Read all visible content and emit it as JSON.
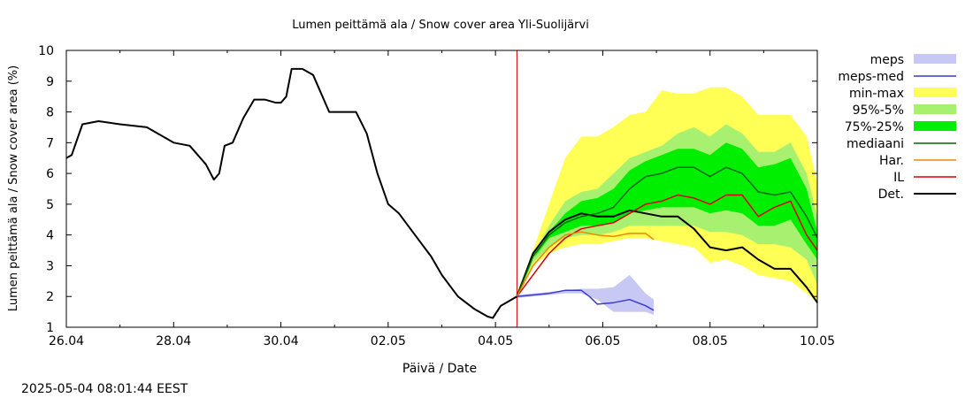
{
  "chart_data": {
    "type": "line",
    "title": "Lumen peittämä ala / Snow cover area Yli-Suolijärvi",
    "xlabel": "Päivä / Date",
    "ylabel": "Lumen peittämä ala / Snow cover area (%)",
    "timestamp": "2025-05-04 08:01:44 EEST",
    "xlim": [
      0,
      14
    ],
    "ylim": [
      1,
      10
    ],
    "x_ticks": [
      {
        "x": 0,
        "label": "26.04"
      },
      {
        "x": 2,
        "label": "28.04"
      },
      {
        "x": 4,
        "label": "30.04"
      },
      {
        "x": 6,
        "label": "02.05"
      },
      {
        "x": 8,
        "label": "04.05"
      },
      {
        "x": 10,
        "label": "06.05"
      },
      {
        "x": 12,
        "label": "08.05"
      },
      {
        "x": 14,
        "label": "10.05"
      }
    ],
    "y_ticks": [
      1,
      2,
      3,
      4,
      5,
      6,
      7,
      8,
      9,
      10
    ],
    "grid": false,
    "legend_position": "right",
    "now_marker": {
      "x": 8.4,
      "color": "#cc0000"
    },
    "legend": [
      {
        "label": "meps",
        "kind": "band",
        "color": "#c8c8f5"
      },
      {
        "label": "meps-med",
        "kind": "line",
        "color": "#3a3acc"
      },
      {
        "label": "min-max",
        "kind": "band",
        "color": "#ffff55"
      },
      {
        "label": "95%-5%",
        "kind": "band",
        "color": "#a8f070"
      },
      {
        "label": "75%-25%",
        "kind": "band",
        "color": "#00ee00"
      },
      {
        "label": "mediaani",
        "kind": "line",
        "color": "#006600"
      },
      {
        "label": "Har.",
        "kind": "line",
        "color": "#ee8800"
      },
      {
        "label": "IL",
        "kind": "line",
        "color": "#dd0000"
      },
      {
        "label": "Det.",
        "kind": "line",
        "color": "#000000"
      }
    ],
    "bands": [
      {
        "name": "min-max",
        "color": "#ffff55",
        "x": [
          8.4,
          8.7,
          9.0,
          9.3,
          9.6,
          9.9,
          10.2,
          10.5,
          10.8,
          11.1,
          11.4,
          11.7,
          12.0,
          12.3,
          12.6,
          12.9,
          13.2,
          13.5,
          13.8,
          14.0
        ],
        "upper": [
          2.1,
          3.5,
          5.0,
          6.5,
          7.2,
          7.2,
          7.5,
          7.9,
          8.0,
          8.7,
          8.6,
          8.6,
          8.8,
          8.8,
          8.5,
          7.9,
          7.9,
          7.9,
          7.2,
          5.7
        ],
        "lower": [
          2.0,
          3.0,
          3.4,
          3.6,
          3.7,
          3.7,
          3.8,
          3.9,
          3.9,
          3.8,
          3.7,
          3.6,
          3.1,
          3.2,
          3.0,
          2.7,
          2.6,
          2.5,
          2.1,
          1.8
        ]
      },
      {
        "name": "95%-5%",
        "color": "#a8f070",
        "x": [
          8.4,
          8.7,
          9.0,
          9.3,
          9.6,
          9.9,
          10.2,
          10.5,
          10.8,
          11.1,
          11.4,
          11.7,
          12.0,
          12.3,
          12.6,
          12.9,
          13.2,
          13.5,
          13.8,
          14.0
        ],
        "upper": [
          2.1,
          3.3,
          4.3,
          5.1,
          5.4,
          5.5,
          6.0,
          6.5,
          6.7,
          6.9,
          7.3,
          7.5,
          7.2,
          7.6,
          7.3,
          6.7,
          6.7,
          7.0,
          6.0,
          4.6
        ],
        "lower": [
          2.0,
          3.1,
          3.6,
          3.9,
          4.0,
          4.0,
          4.1,
          4.3,
          4.3,
          4.3,
          4.3,
          4.3,
          4.1,
          4.1,
          4.0,
          3.7,
          3.7,
          3.6,
          3.2,
          2.4
        ]
      },
      {
        "name": "75%-25%",
        "color": "#00ee00",
        "x": [
          8.4,
          8.7,
          9.0,
          9.3,
          9.6,
          9.9,
          10.2,
          10.5,
          10.8,
          11.1,
          11.4,
          11.7,
          12.0,
          12.3,
          12.6,
          12.9,
          13.2,
          13.5,
          13.8,
          14.0
        ],
        "upper": [
          2.1,
          3.2,
          4.1,
          4.7,
          5.1,
          5.2,
          5.5,
          6.1,
          6.4,
          6.6,
          6.8,
          6.8,
          6.6,
          7.0,
          6.8,
          6.2,
          6.3,
          6.5,
          5.5,
          4.1
        ],
        "lower": [
          2.0,
          3.2,
          3.9,
          4.1,
          4.3,
          4.3,
          4.4,
          4.7,
          4.8,
          4.9,
          4.9,
          4.9,
          4.7,
          4.8,
          4.7,
          4.3,
          4.3,
          4.5,
          3.7,
          3.2
        ]
      },
      {
        "name": "meps",
        "color": "#c8c8f5",
        "x": [
          8.4,
          8.7,
          9.0,
          9.3,
          9.6,
          9.9,
          10.2,
          10.5,
          10.8,
          10.95
        ],
        "upper": [
          2.05,
          2.1,
          2.15,
          2.2,
          2.25,
          2.25,
          2.3,
          2.7,
          2.1,
          1.9
        ],
        "lower": [
          1.95,
          2.0,
          2.05,
          2.1,
          2.1,
          1.9,
          1.5,
          1.5,
          1.5,
          1.4
        ]
      }
    ],
    "series": [
      {
        "name": "Det.",
        "color": "#000000",
        "x": [
          0.0,
          0.1,
          0.3,
          0.6,
          1.0,
          1.5,
          2.0,
          2.3,
          2.6,
          2.75,
          2.85,
          2.95,
          3.1,
          3.3,
          3.5,
          3.7,
          3.9,
          4.0,
          4.1,
          4.2,
          4.4,
          4.6,
          4.9,
          5.1,
          5.4,
          5.6,
          5.8,
          6.0,
          6.2,
          6.5,
          6.8,
          7.0,
          7.3,
          7.6,
          7.85,
          7.95,
          8.1,
          8.4,
          8.7,
          9.0,
          9.3,
          9.6,
          9.9,
          10.2,
          10.5,
          10.8,
          11.1,
          11.4,
          11.7,
          12.0,
          12.3,
          12.6,
          12.9,
          13.2,
          13.5,
          13.8,
          14.0
        ],
        "y": [
          6.5,
          6.6,
          7.6,
          7.7,
          7.6,
          7.5,
          7.0,
          6.9,
          6.3,
          5.8,
          6.0,
          6.9,
          7.0,
          7.8,
          8.4,
          8.4,
          8.3,
          8.3,
          8.5,
          9.4,
          9.4,
          9.2,
          8.0,
          8.0,
          8.0,
          7.3,
          6.0,
          5.0,
          4.7,
          4.0,
          3.3,
          2.7,
          2.0,
          1.6,
          1.35,
          1.3,
          1.7,
          2.0,
          3.4,
          4.1,
          4.5,
          4.7,
          4.6,
          4.6,
          4.8,
          4.7,
          4.6,
          4.6,
          4.2,
          3.6,
          3.5,
          3.6,
          3.2,
          2.9,
          2.9,
          2.3,
          1.8
        ]
      },
      {
        "name": "mediaani",
        "color": "#006600",
        "x": [
          8.4,
          8.7,
          9.0,
          9.3,
          9.6,
          9.9,
          10.2,
          10.5,
          10.8,
          11.1,
          11.4,
          11.7,
          12.0,
          12.3,
          12.6,
          12.9,
          13.2,
          13.5,
          13.8,
          14.0
        ],
        "y": [
          2.0,
          3.3,
          4.0,
          4.4,
          4.6,
          4.7,
          4.9,
          5.5,
          5.9,
          6.0,
          6.2,
          6.2,
          5.9,
          6.2,
          6.0,
          5.4,
          5.3,
          5.4,
          4.6,
          3.9
        ]
      },
      {
        "name": "IL",
        "color": "#dd0000",
        "x": [
          8.4,
          8.7,
          9.0,
          9.3,
          9.6,
          9.9,
          10.2,
          10.5,
          10.8,
          11.1,
          11.4,
          11.7,
          12.0,
          12.3,
          12.6,
          12.9,
          13.2,
          13.5,
          13.8,
          14.0
        ],
        "y": [
          2.0,
          2.7,
          3.4,
          3.9,
          4.2,
          4.3,
          4.4,
          4.7,
          5.0,
          5.1,
          5.3,
          5.2,
          5.0,
          5.3,
          5.3,
          4.6,
          4.9,
          5.1,
          4.0,
          3.5
        ]
      },
      {
        "name": "Har.",
        "color": "#ee8800",
        "x": [
          8.4,
          8.7,
          9.0,
          9.3,
          9.6,
          9.9,
          10.2,
          10.5,
          10.8,
          10.95
        ],
        "y": [
          2.0,
          3.0,
          3.6,
          4.0,
          4.1,
          4.0,
          3.95,
          4.05,
          4.05,
          3.85
        ]
      },
      {
        "name": "meps-med",
        "color": "#3a3acc",
        "x": [
          8.4,
          8.7,
          9.0,
          9.3,
          9.6,
          9.75,
          9.9,
          10.2,
          10.5,
          10.8,
          10.95
        ],
        "y": [
          2.0,
          2.05,
          2.1,
          2.2,
          2.2,
          2.0,
          1.75,
          1.8,
          1.9,
          1.7,
          1.55
        ]
      }
    ]
  }
}
